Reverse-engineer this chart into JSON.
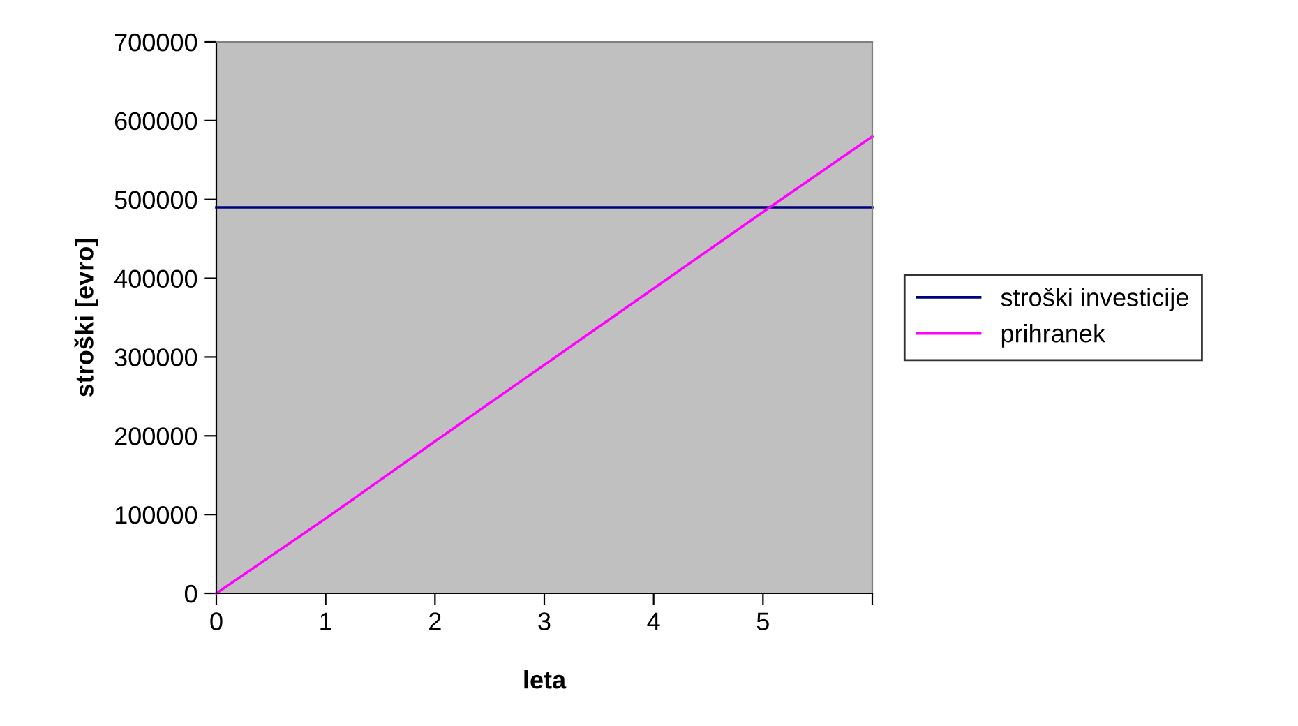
{
  "chart_data": {
    "type": "line",
    "xlabel": "leta",
    "ylabel": "stroški [evro]",
    "x": [
      0,
      1,
      2,
      3,
      4,
      5,
      6
    ],
    "series": [
      {
        "name": "stroški investicije",
        "color": "#000080",
        "values": [
          490000,
          490000,
          490000,
          490000,
          490000,
          490000,
          490000
        ]
      },
      {
        "name": "prihranek",
        "color": "#ff00ff",
        "values": [
          0,
          95000,
          193000,
          290000,
          387000,
          484000,
          580000
        ]
      }
    ],
    "xlim": [
      0,
      6
    ],
    "xticks": [
      0,
      1,
      2,
      3,
      4,
      5,
      {
        "value": 6,
        "label": null
      }
    ],
    "ylim": [
      0,
      700000
    ],
    "yticks": [
      0,
      100000,
      200000,
      300000,
      400000,
      500000,
      600000,
      700000
    ],
    "grid": false,
    "legend": "right",
    "marker": "none",
    "line_style": "solid"
  }
}
